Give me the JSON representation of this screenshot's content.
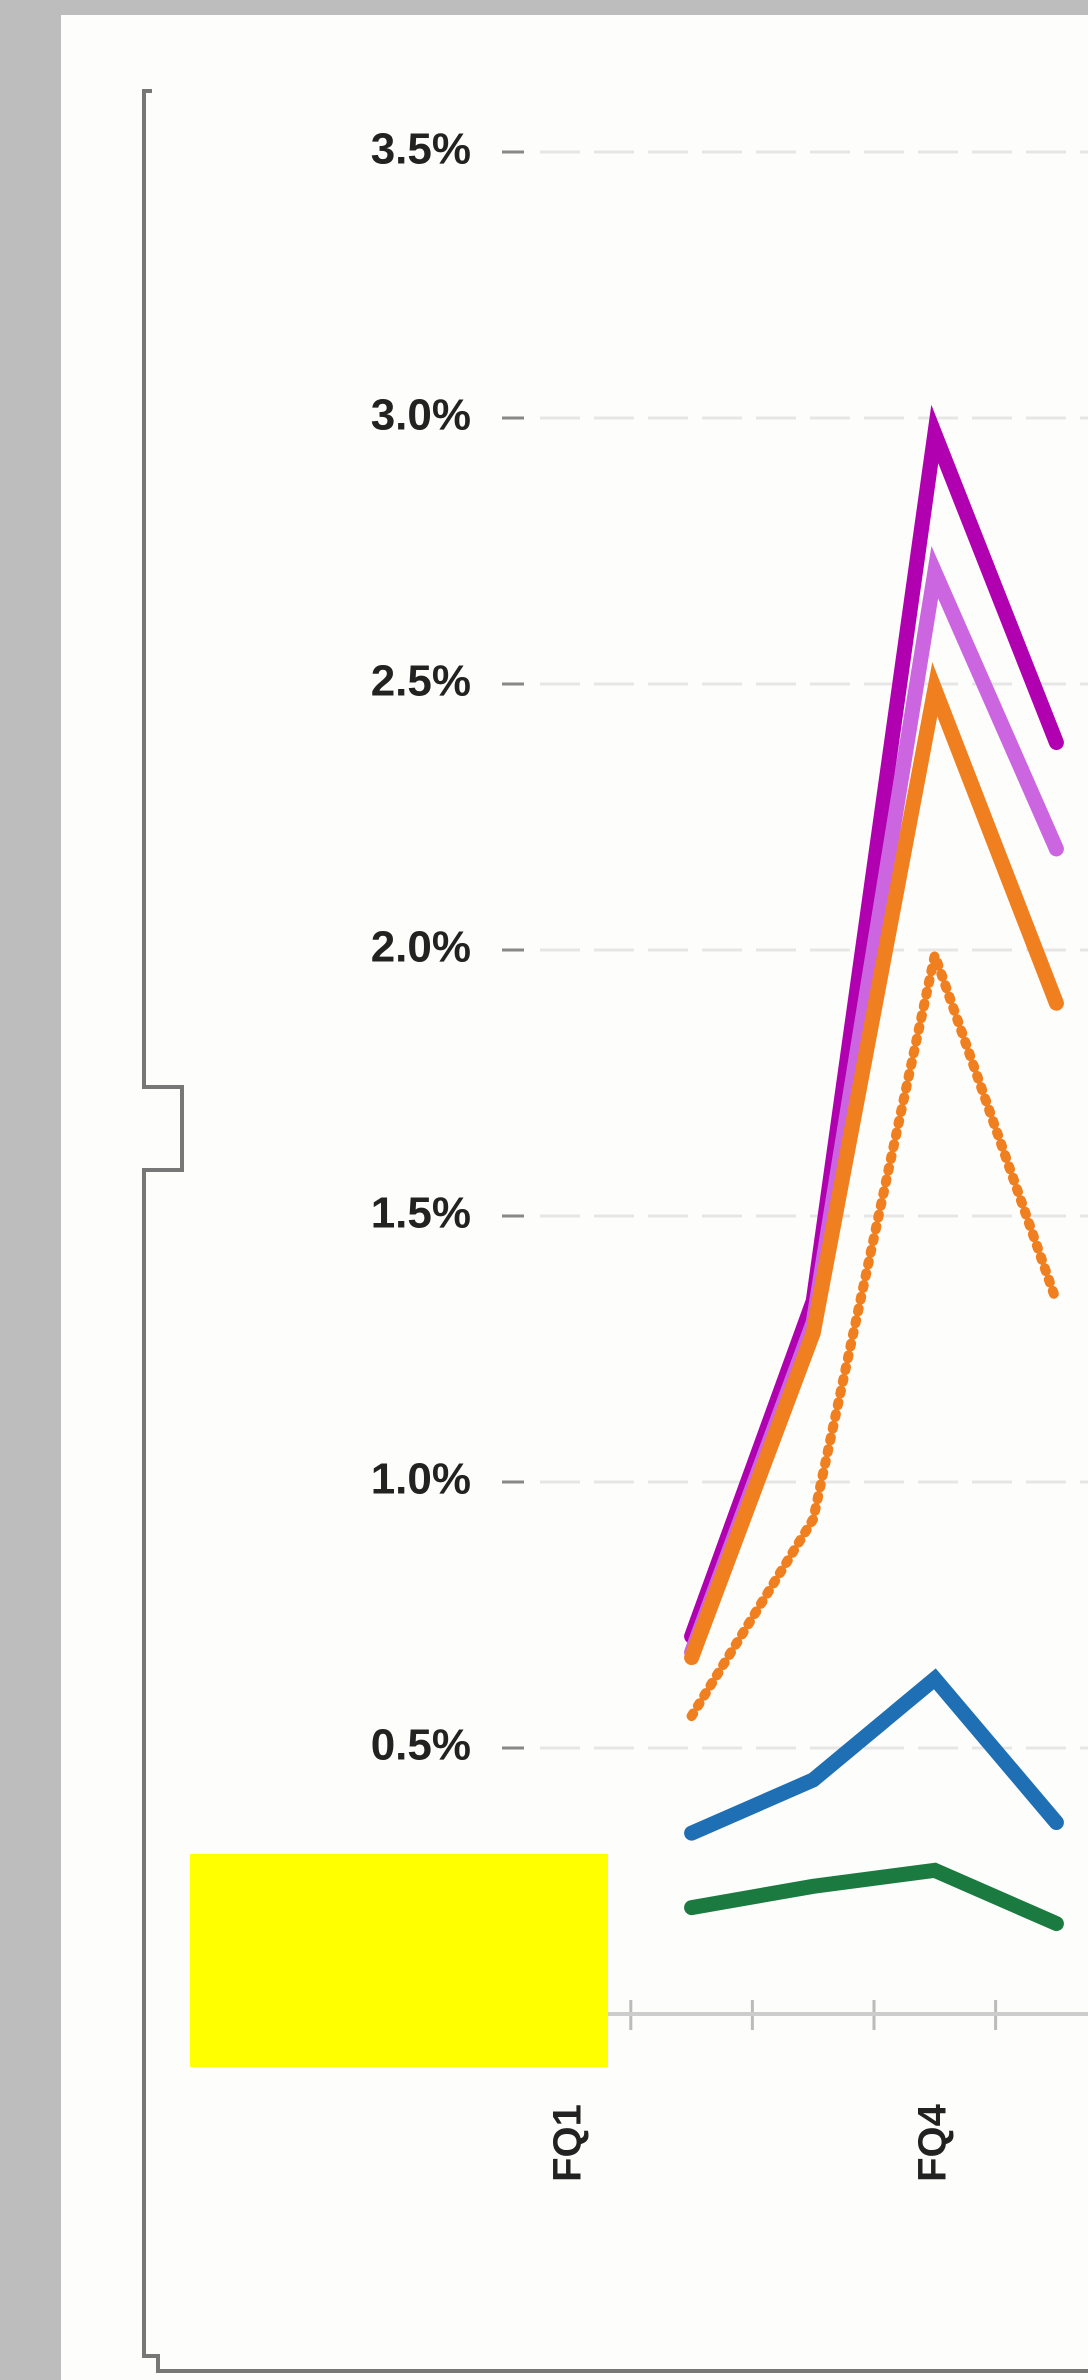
{
  "chart_data": {
    "type": "line",
    "categories": [
      "FQ1",
      null,
      null,
      "FQ4",
      null
    ],
    "series": [
      {
        "color": "#b000b0",
        "values": [
          null,
          0.71,
          1.34,
          2.97,
          2.39
        ]
      },
      {
        "color": "#cc66e0",
        "values": [
          null,
          0.68,
          1.3,
          2.71,
          2.19
        ]
      },
      {
        "color": "#f07f20",
        "values": [
          null,
          0.67,
          1.28,
          2.49,
          1.9
        ]
      },
      {
        "color": "#f07f20",
        "dashed": true,
        "values": [
          null,
          0.56,
          0.93,
          1.99,
          1.34
        ]
      },
      {
        "color": "#1f6fb5",
        "values": [
          null,
          0.34,
          0.44,
          0.63,
          0.36
        ]
      },
      {
        "color": "#1a7a40",
        "values": [
          null,
          0.2,
          0.24,
          0.27,
          0.17
        ]
      }
    ],
    "ylim": [
      0,
      3.5
    ],
    "yticks": [
      {
        "value": 0.5,
        "label": "0.5%"
      },
      {
        "value": 1.0,
        "label": "1.0%"
      },
      {
        "value": 1.5,
        "label": "1.5%"
      },
      {
        "value": 2.0,
        "label": "2.0%"
      },
      {
        "value": 2.5,
        "label": "2.5%"
      },
      {
        "value": 3.0,
        "label": "3.0%"
      },
      {
        "value": 3.5,
        "label": "3.5%"
      }
    ],
    "grid": true
  }
}
